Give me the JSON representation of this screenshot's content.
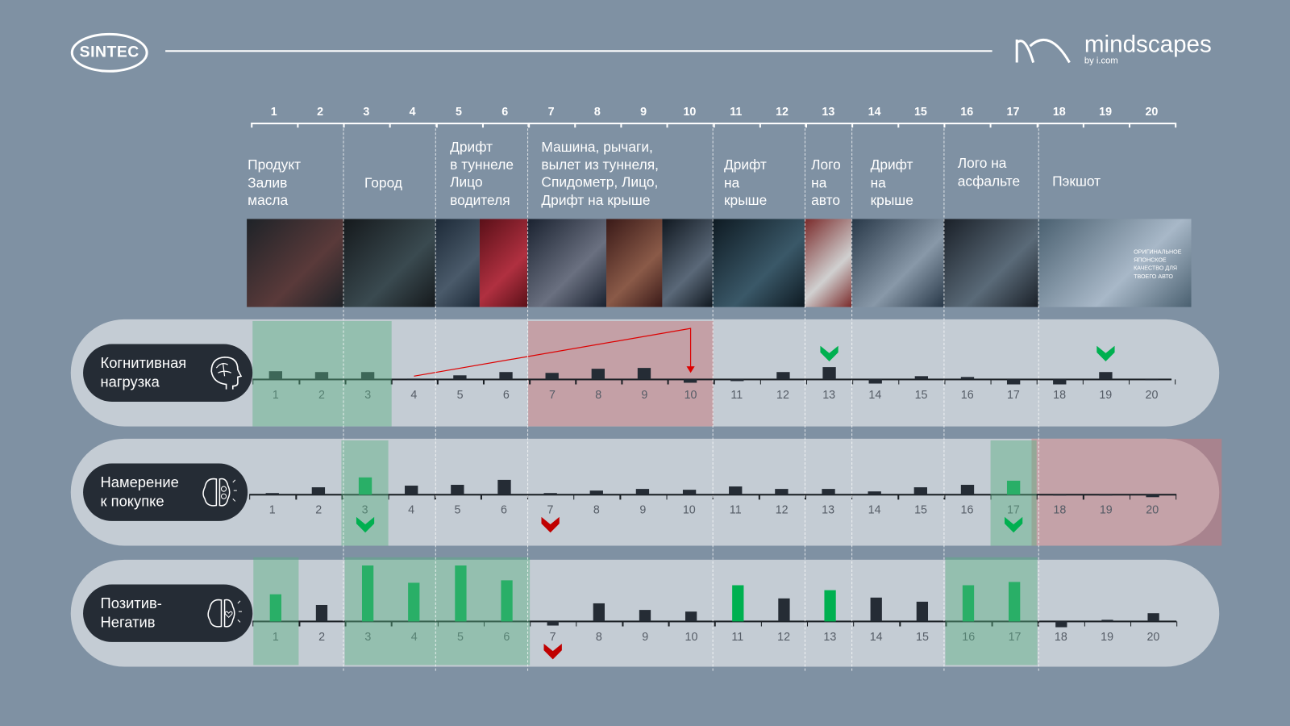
{
  "header": {
    "brand_left": "SINTEC",
    "brand_right": "mindscapes",
    "brand_right_sub": "by i.com"
  },
  "scenes": [
    {
      "label": [
        "Продукт",
        "Залив",
        "масла"
      ],
      "cols": "1-2"
    },
    {
      "label": [
        "Город"
      ],
      "cols": "3-4"
    },
    {
      "label": [
        "Дрифт",
        "в туннеле",
        "Лицо",
        "водителя"
      ],
      "cols": "5-6"
    },
    {
      "label": [
        "Машина, рычаги,",
        "вылет из туннеля,",
        "Спидометр, Лицо,",
        "Дрифт на крыше"
      ],
      "cols": "7-10"
    },
    {
      "label": [
        "Дрифт",
        "на",
        "крыше"
      ],
      "cols": "11-12"
    },
    {
      "label": [
        "Лого",
        "на",
        "авто"
      ],
      "cols": "13"
    },
    {
      "label": [
        "Дрифт",
        "на",
        "крыше"
      ],
      "cols": "14-15"
    },
    {
      "label": [
        "Лого на",
        "асфальте"
      ],
      "cols": "16-17"
    },
    {
      "label": [
        "Пэкшот"
      ],
      "cols": "18-20"
    }
  ],
  "thumbnail_text": "ОРИГИНАЛЬНОЕ ЯПОНСКОЕ КАЧЕСТВО ДЛЯ ТВОЕГО АВТО",
  "colors": {
    "bar": "#252c35",
    "positive": "#00b050",
    "highlight_green": "rgba(80,180,130,0.45)",
    "highlight_red": "rgba(200,90,100,0.45)",
    "negative": "#c00000"
  },
  "chart_data": {
    "type": "bar",
    "categories": [
      "1",
      "2",
      "3",
      "4",
      "5",
      "6",
      "7",
      "8",
      "9",
      "10",
      "11",
      "12",
      "13",
      "14",
      "15",
      "16",
      "17",
      "18",
      "19",
      "20"
    ],
    "series": [
      {
        "name": "Когнитивная нагрузка",
        "label": [
          "Когнитивная",
          "нагрузка"
        ],
        "values": [
          10,
          9,
          9,
          1,
          5,
          9,
          8,
          13,
          14,
          -4,
          -2,
          9,
          15,
          -5,
          4,
          3,
          -6,
          -6,
          9,
          0
        ],
        "green_bars": [],
        "highlights_green": [
          [
            1,
            3
          ]
        ],
        "highlights_red": [
          [
            7,
            10
          ]
        ],
        "markers_up_green": [
          13,
          19
        ],
        "markers_down_green": [],
        "markers_red": [],
        "trend_arrow": [
          4,
          10
        ]
      },
      {
        "name": "Намерение к покупке",
        "label": [
          "Намерение",
          "к покупке"
        ],
        "values": [
          2,
          9,
          21,
          11,
          12,
          18,
          2,
          5,
          7,
          6,
          10,
          7,
          7,
          4,
          9,
          12,
          17,
          0,
          0,
          -3
        ],
        "green_bars": [
          3,
          17
        ],
        "highlights_green": [
          [
            3,
            3
          ],
          [
            17,
            17
          ]
        ],
        "highlights_red": [
          [
            18,
            20
          ]
        ],
        "markers_up_green": [],
        "markers_down_green": [
          3,
          17
        ],
        "markers_red": [
          7
        ]
      },
      {
        "name": "Позитив-Негатив",
        "label": [
          "Позитив-",
          "Негатив"
        ],
        "values": [
          33,
          20,
          68,
          47,
          68,
          50,
          -5,
          22,
          14,
          12,
          44,
          28,
          38,
          29,
          24,
          44,
          48,
          -7,
          2,
          10
        ],
        "green_bars": [
          1,
          3,
          4,
          5,
          6,
          11,
          13,
          16,
          17
        ],
        "highlights_green": [
          [
            1,
            1
          ],
          [
            3,
            6
          ],
          [
            16,
            17
          ]
        ],
        "highlights_red": [],
        "markers_up_green": [],
        "markers_down_green": [],
        "markers_red": [
          7
        ]
      }
    ],
    "title": "",
    "xlabel": "",
    "ylabel": "",
    "grid": false
  }
}
